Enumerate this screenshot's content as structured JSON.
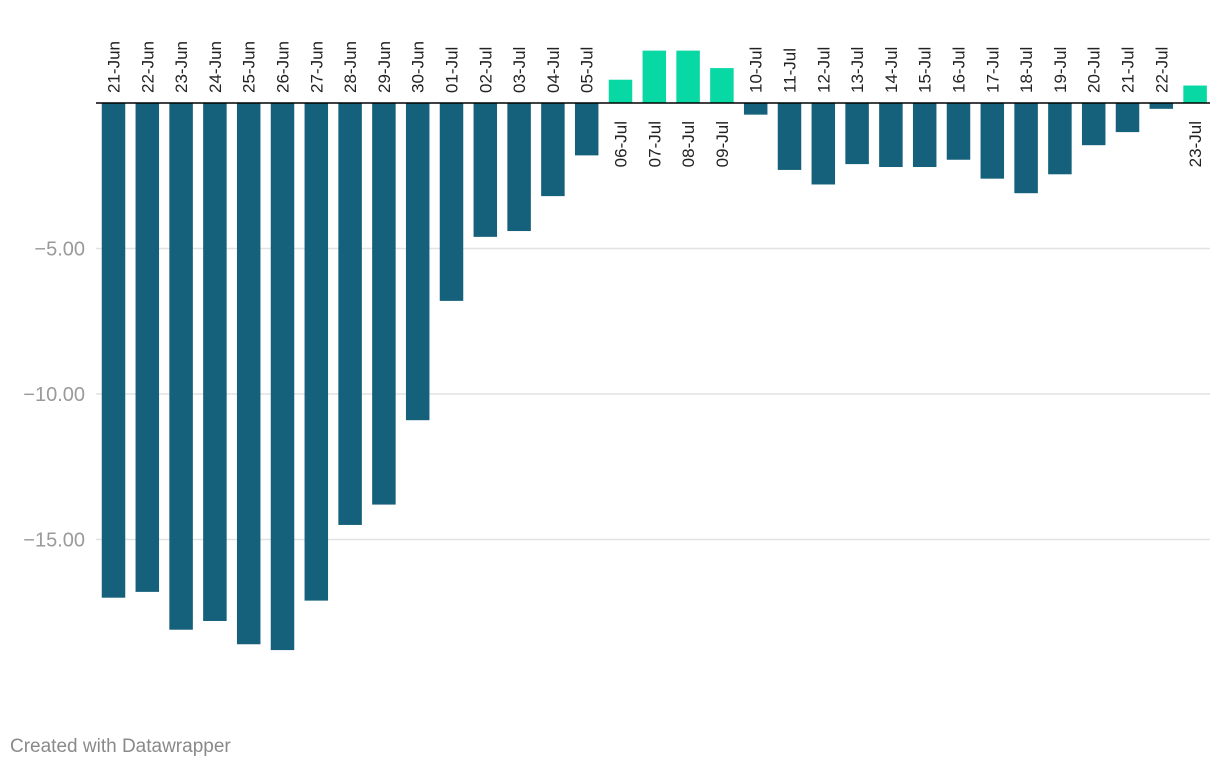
{
  "chart_data": {
    "type": "bar",
    "title": "",
    "xlabel": "",
    "ylabel": "",
    "categories": [
      "21-Jun",
      "22-Jun",
      "23-Jun",
      "24-Jun",
      "25-Jun",
      "26-Jun",
      "27-Jun",
      "28-Jun",
      "29-Jun",
      "30-Jun",
      "01-Jul",
      "02-Jul",
      "03-Jul",
      "04-Jul",
      "05-Jul",
      "06-Jul",
      "07-Jul",
      "08-Jul",
      "09-Jul",
      "10-Jul",
      "11-Jul",
      "12-Jul",
      "13-Jul",
      "14-Jul",
      "15-Jul",
      "16-Jul",
      "17-Jul",
      "18-Jul",
      "19-Jul",
      "20-Jul",
      "21-Jul",
      "22-Jul",
      "23-Jul"
    ],
    "values": [
      -17.0,
      -16.8,
      -18.1,
      -17.8,
      -18.6,
      -18.8,
      -17.1,
      -14.5,
      -13.8,
      -10.9,
      -6.8,
      -4.6,
      -4.4,
      -3.2,
      -1.8,
      0.8,
      1.8,
      1.8,
      1.2,
      -0.4,
      -2.3,
      -2.8,
      -2.1,
      -2.2,
      -2.2,
      -1.95,
      -2.6,
      -3.1,
      -2.45,
      -1.45,
      -1.0,
      -0.2,
      0.6
    ],
    "ylim": [
      -21,
      2.9
    ],
    "yticks": [
      -5,
      -10,
      -15
    ],
    "ytick_labels": [
      "−5.00",
      "−10.00",
      "−15.00"
    ],
    "grid": true,
    "legend": "none",
    "colors": {
      "negative": "#15607a",
      "positive": "#08d9a4",
      "grid": "#e2e2e2",
      "axis": "#000000"
    }
  },
  "footer": {
    "credit": "Created with Datawrapper"
  }
}
